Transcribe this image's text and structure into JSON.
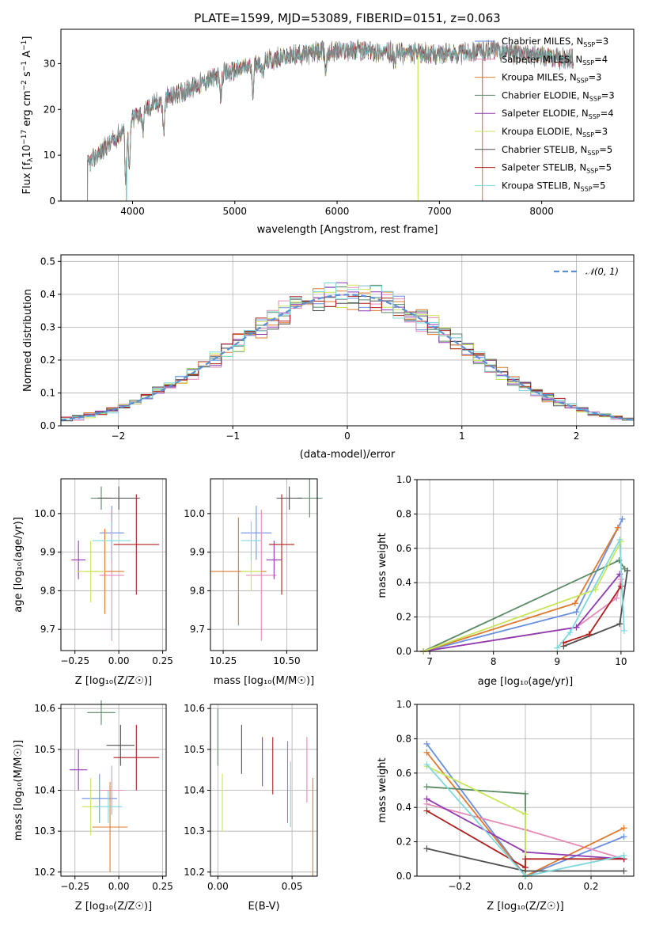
{
  "colors": {
    "Chabrier MILES": "#6a8fe0",
    "Salpeter MILES": "#e68ab7",
    "Kroupa MILES": "#e07a2e",
    "Chabrier ELODIE": "#5a8a64",
    "Salpeter ELODIE": "#8f3ab0",
    "Kroupa ELODIE": "#c8e65a",
    "Chabrier STELIB": "#505050",
    "Salpeter STELIB": "#b01e1e",
    "Kroupa STELIB": "#7fd8dc"
  },
  "chart_data": [
    {
      "id": "spectrum",
      "type": "line",
      "title": "PLATE=1599, MJD=53089, FIBERID=0151, z=0.063",
      "xlabel": "wavelength [Angstrom, rest frame]",
      "ylabel_parts": [
        "Flux [f",
        "λ",
        "10",
        "−17",
        " erg cm",
        "−2",
        " s",
        "−1",
        " A",
        "−1",
        "]"
      ],
      "xlim": [
        3300,
        8900
      ],
      "ylim": [
        0,
        37.5
      ],
      "xticks": [
        "4000",
        "5000",
        "6000",
        "7000",
        "8000"
      ],
      "yticks": [
        "0",
        "10",
        "20",
        "30"
      ],
      "legend_position": "right",
      "legend": [
        {
          "name": "Chabrier MILES",
          "nssp": "3"
        },
        {
          "name": "Salpeter MILES",
          "nssp": "4"
        },
        {
          "name": "Kroupa MILES",
          "nssp": "3"
        },
        {
          "name": "Chabrier ELODIE",
          "nssp": "3"
        },
        {
          "name": "Salpeter ELODIE",
          "nssp": "4"
        },
        {
          "name": "Kroupa ELODIE",
          "nssp": "3"
        },
        {
          "name": "Chabrier STELIB",
          "nssp": "5"
        },
        {
          "name": "Salpeter STELIB",
          "nssp": "5"
        },
        {
          "name": "Kroupa STELIB",
          "nssp": "5"
        }
      ],
      "legend_sub": "SSP",
      "continuum": [
        [
          3560,
          8
        ],
        [
          3700,
          11
        ],
        [
          3850,
          14
        ],
        [
          3950,
          17
        ],
        [
          4050,
          19
        ],
        [
          4200,
          21
        ],
        [
          4400,
          23
        ],
        [
          4600,
          25
        ],
        [
          4800,
          27
        ],
        [
          5000,
          28.5
        ],
        [
          5200,
          30
        ],
        [
          5500,
          31.5
        ],
        [
          5800,
          32.5
        ],
        [
          6100,
          33
        ],
        [
          6500,
          32.5
        ],
        [
          7000,
          32
        ],
        [
          7500,
          33
        ],
        [
          8000,
          31.5
        ],
        [
          8300,
          31
        ]
      ],
      "data_xrange": [
        3560,
        8310
      ],
      "dips": [
        [
          3934,
          12
        ],
        [
          3969,
          11
        ],
        [
          4102,
          4
        ],
        [
          4304,
          7
        ],
        [
          4861,
          5
        ],
        [
          5175,
          6
        ],
        [
          5270,
          3
        ],
        [
          5890,
          4
        ],
        [
          6563,
          3
        ]
      ],
      "dropouts": [
        [
          3935,
          "Kroupa MILES"
        ],
        [
          3945,
          "Kroupa STELIB"
        ],
        [
          6790,
          "Kroupa ELODIE"
        ],
        [
          7420,
          "Salpeter STELIB"
        ],
        [
          3560,
          "Chabrier STELIB"
        ]
      ]
    },
    {
      "id": "residuals",
      "type": "histogram",
      "xlabel": "(data-model)/error",
      "ylabel": "Normed distribution",
      "xlim": [
        -2.5,
        2.5
      ],
      "ylim": [
        0,
        0.52
      ],
      "xticks": [
        "−2",
        "−1",
        "0",
        "1",
        "2"
      ],
      "yticks": [
        "0.0",
        "0.1",
        "0.2",
        "0.3",
        "0.4",
        "0.5"
      ],
      "bin_width": 0.1,
      "legend_label": "𝒩(0, 1)",
      "legend_position": "top-right"
    },
    {
      "id": "age-vs-Z",
      "type": "errorbar",
      "xlabel": "Z [log₁₀(Z/Z☉)]",
      "ylabel": "age  [log₁₀(age/yr)]",
      "xlim": [
        -0.33,
        0.27
      ],
      "ylim": [
        9.645,
        10.09
      ],
      "xticks": [
        -0.25,
        0.0,
        0.25
      ],
      "xtick_labels": [
        "−0.25",
        "0.00",
        "0.25"
      ],
      "yticks": [
        9.7,
        9.8,
        9.9,
        10.0
      ],
      "ytick_labels": [
        "9.7",
        "9.8",
        "9.9",
        "10.0"
      ],
      "points": [
        {
          "series": "Chabrier MILES",
          "x": -0.04,
          "y": 9.95,
          "xerr": 0.07,
          "yerr": 0.07
        },
        {
          "series": "Salpeter MILES",
          "x": -0.04,
          "y": 9.84,
          "xerr": 0.07,
          "yerr": 0.17
        },
        {
          "series": "Kroupa MILES",
          "x": -0.08,
          "y": 9.85,
          "xerr": 0.11,
          "yerr": 0.11
        },
        {
          "series": "Chabrier ELODIE",
          "x": -0.1,
          "y": 10.04,
          "xerr": 0.06,
          "yerr": 0.03
        },
        {
          "series": "Salpeter ELODIE",
          "x": -0.23,
          "y": 9.88,
          "xerr": 0.04,
          "yerr": 0.05
        },
        {
          "series": "Kroupa ELODIE",
          "x": -0.16,
          "y": 9.85,
          "xerr": 0.08,
          "yerr": 0.08
        },
        {
          "series": "Chabrier STELIB",
          "x": 0.0,
          "y": 10.04,
          "xerr": 0.12,
          "yerr": 0.03
        },
        {
          "series": "Salpeter STELIB",
          "x": 0.1,
          "y": 9.92,
          "xerr": 0.13,
          "yerr": 0.13
        },
        {
          "series": "Kroupa STELIB",
          "x": -0.04,
          "y": 9.93,
          "xerr": 0.11,
          "yerr": 0.05
        }
      ]
    },
    {
      "id": "age-vs-mass",
      "type": "errorbar",
      "xlabel": "mass [log₁₀(M/M☉)]",
      "ylabel": "",
      "xlim": [
        10.2,
        10.62
      ],
      "ylim": [
        9.645,
        10.09
      ],
      "xticks": [
        10.25,
        10.5
      ],
      "xtick_labels": [
        "10.25",
        "10.50"
      ],
      "yticks": [
        9.7,
        9.8,
        9.9,
        10.0
      ],
      "ytick_labels": [
        "9.7",
        "9.8",
        "9.9",
        "10.0"
      ],
      "points": [
        {
          "series": "Chabrier MILES",
          "x": 10.38,
          "y": 9.95,
          "xerr": 0.06,
          "yerr": 0.07
        },
        {
          "series": "Salpeter MILES",
          "x": 10.4,
          "y": 9.84,
          "xerr": 0.06,
          "yerr": 0.17
        },
        {
          "series": "Kroupa MILES",
          "x": 10.31,
          "y": 9.85,
          "xerr": 0.11,
          "yerr": 0.14
        },
        {
          "series": "Chabrier ELODIE",
          "x": 10.59,
          "y": 10.04,
          "xerr": 0.05,
          "yerr": 0.05
        },
        {
          "series": "Salpeter ELODIE",
          "x": 10.45,
          "y": 9.88,
          "xerr": 0.03,
          "yerr": 0.05
        },
        {
          "series": "Kroupa ELODIE",
          "x": 10.36,
          "y": 9.85,
          "xerr": 0.04,
          "yerr": 0.05
        },
        {
          "series": "Chabrier STELIB",
          "x": 10.51,
          "y": 10.04,
          "xerr": 0.05,
          "yerr": 0.03
        },
        {
          "series": "Salpeter STELIB",
          "x": 10.48,
          "y": 9.92,
          "xerr": 0.05,
          "yerr": 0.13
        },
        {
          "series": "Kroupa STELIB",
          "x": 10.36,
          "y": 9.93,
          "xerr": 0.04,
          "yerr": 0.05
        }
      ]
    },
    {
      "id": "weight-vs-age",
      "type": "line",
      "xlabel": "age  [log₁₀(age/yr)]",
      "ylabel": "mass weight",
      "xlim": [
        6.8,
        10.2
      ],
      "ylim": [
        0,
        1.0
      ],
      "xticks": [
        7,
        8,
        9,
        10
      ],
      "xtick_labels": [
        "7",
        "8",
        "9",
        "10"
      ],
      "yticks": [
        0,
        0.2,
        0.4,
        0.6,
        0.8,
        1.0
      ],
      "ytick_labels": [
        "0.0",
        "0.2",
        "0.4",
        "0.6",
        "0.8",
        "1.0"
      ],
      "series": [
        {
          "name": "Chabrier MILES",
          "x": [
            6.9,
            9.3,
            10.02
          ],
          "y": [
            0.0,
            0.23,
            0.77
          ]
        },
        {
          "name": "Salpeter MILES",
          "x": [
            6.9,
            9.3,
            9.93,
            10.0
          ],
          "y": [
            0.0,
            0.14,
            0.31,
            0.42
          ]
        },
        {
          "name": "Kroupa MILES",
          "x": [
            6.9,
            9.28,
            9.95
          ],
          "y": [
            0.0,
            0.28,
            0.72
          ]
        },
        {
          "name": "Chabrier ELODIE",
          "x": [
            6.9,
            9.97,
            10.06
          ],
          "y": [
            0.0,
            0.53,
            0.48
          ]
        },
        {
          "name": "Salpeter ELODIE",
          "x": [
            6.9,
            9.3,
            9.98
          ],
          "y": [
            0.0,
            0.14,
            0.45
          ]
        },
        {
          "name": "Kroupa ELODIE",
          "x": [
            6.9,
            9.6,
            10.0
          ],
          "y": [
            0.0,
            0.36,
            0.64
          ]
        },
        {
          "name": "Chabrier STELIB",
          "x": [
            9.1,
            9.98,
            10.1
          ],
          "y": [
            0.03,
            0.16,
            0.47
          ]
        },
        {
          "name": "Salpeter STELIB",
          "x": [
            9.1,
            9.5,
            10.0
          ],
          "y": [
            0.05,
            0.1,
            0.38
          ]
        },
        {
          "name": "Kroupa STELIB",
          "x": [
            9.0,
            9.2,
            9.98,
            10.05
          ],
          "y": [
            0.02,
            0.11,
            0.65,
            0.12
          ]
        }
      ]
    },
    {
      "id": "mass-vs-Z",
      "type": "errorbar",
      "xlabel": "Z [log₁₀(Z/Z☉)]",
      "ylabel": "mass [log₁₀(M/M☉)]",
      "xlim": [
        -0.33,
        0.27
      ],
      "ylim": [
        10.19,
        10.61
      ],
      "xticks": [
        -0.25,
        0.0,
        0.25
      ],
      "xtick_labels": [
        "−0.25",
        "0.00",
        "0.25"
      ],
      "yticks": [
        10.2,
        10.3,
        10.4,
        10.5,
        10.6
      ],
      "ytick_labels": [
        "10.2",
        "10.3",
        "10.4",
        "10.5",
        "10.6"
      ],
      "points": [
        {
          "series": "Chabrier MILES",
          "x": -0.11,
          "y": 10.38,
          "xerr": 0.1,
          "yerr": 0.06
        },
        {
          "series": "Salpeter MILES",
          "x": -0.04,
          "y": 10.4,
          "xerr": 0.07,
          "yerr": 0.06
        },
        {
          "series": "Kroupa MILES",
          "x": -0.05,
          "y": 10.31,
          "xerr": 0.1,
          "yerr": 0.11
        },
        {
          "series": "Chabrier ELODIE",
          "x": -0.1,
          "y": 10.59,
          "xerr": 0.08,
          "yerr": 0.03
        },
        {
          "series": "Salpeter ELODIE",
          "x": -0.23,
          "y": 10.45,
          "xerr": 0.05,
          "yerr": 0.05
        },
        {
          "series": "Kroupa ELODIE",
          "x": -0.16,
          "y": 10.36,
          "xerr": 0.05,
          "yerr": 0.07
        },
        {
          "series": "Chabrier STELIB",
          "x": 0.01,
          "y": 10.51,
          "xerr": 0.08,
          "yerr": 0.05
        },
        {
          "series": "Salpeter STELIB",
          "x": 0.1,
          "y": 10.48,
          "xerr": 0.13,
          "yerr": 0.08
        },
        {
          "series": "Kroupa STELIB",
          "x": -0.06,
          "y": 10.36,
          "xerr": 0.08,
          "yerr": 0.04
        }
      ]
    },
    {
      "id": "mass-vs-EBV",
      "type": "errorbar",
      "xlabel": "E(B-V)",
      "ylabel": "",
      "xlim": [
        -0.005,
        0.067
      ],
      "ylim": [
        10.19,
        10.61
      ],
      "xticks": [
        0.0,
        0.05
      ],
      "xtick_labels": [
        "0.00",
        "0.05"
      ],
      "yticks": [
        10.2,
        10.3,
        10.4,
        10.5,
        10.6
      ],
      "ytick_labels": [
        "10.2",
        "10.3",
        "10.4",
        "10.5",
        "10.6"
      ],
      "points": [
        {
          "series": "Chabrier MILES",
          "x": 0.047,
          "y": 10.42,
          "xerr": 0,
          "yerr": 0.1
        },
        {
          "series": "Salpeter MILES",
          "x": 0.06,
          "y": 10.45,
          "xerr": 0,
          "yerr": 0.08
        },
        {
          "series": "Kroupa MILES",
          "x": 0.064,
          "y": 10.31,
          "xerr": 0,
          "yerr": 0.12
        },
        {
          "series": "Chabrier ELODIE",
          "x": 0.0,
          "y": 10.53,
          "xerr": 0,
          "yerr": 0.07
        },
        {
          "series": "Salpeter ELODIE",
          "x": 0.03,
          "y": 10.47,
          "xerr": 0,
          "yerr": 0.06
        },
        {
          "series": "Kroupa ELODIE",
          "x": 0.003,
          "y": 10.37,
          "xerr": 0,
          "yerr": 0.07
        },
        {
          "series": "Chabrier STELIB",
          "x": 0.016,
          "y": 10.5,
          "xerr": 0,
          "yerr": 0.06
        },
        {
          "series": "Salpeter STELIB",
          "x": 0.037,
          "y": 10.46,
          "xerr": 0,
          "yerr": 0.07
        },
        {
          "series": "Kroupa STELIB",
          "x": 0.049,
          "y": 10.39,
          "xerr": 0,
          "yerr": 0.08
        }
      ]
    },
    {
      "id": "weight-vs-Z",
      "type": "line",
      "xlabel": "Z [log₁₀(Z/Z☉)]",
      "ylabel": "mass weight",
      "xlim": [
        -0.33,
        0.33
      ],
      "ylim": [
        0,
        1.0
      ],
      "xticks": [
        -0.2,
        0.0,
        0.2
      ],
      "xtick_labels": [
        "−0.2",
        "0.0",
        "0.2"
      ],
      "yticks": [
        0,
        0.2,
        0.4,
        0.6,
        0.8,
        1.0
      ],
      "ytick_labels": [
        "0.0",
        "0.2",
        "0.4",
        "0.6",
        "0.8",
        "1.0"
      ],
      "series": [
        {
          "name": "Chabrier MILES",
          "x": [
            -0.3,
            0.0,
            0.3
          ],
          "y": [
            0.77,
            0.0,
            0.23
          ]
        },
        {
          "name": "Salpeter MILES",
          "x": [
            -0.3,
            0.0,
            0.3
          ],
          "y": [
            0.42,
            0.27,
            0.1
          ]
        },
        {
          "name": "Kroupa MILES",
          "x": [
            -0.3,
            0.0,
            0.3
          ],
          "y": [
            0.72,
            0.0,
            0.28
          ]
        },
        {
          "name": "Chabrier ELODIE",
          "x": [
            -0.3,
            0.0,
            0.0
          ],
          "y": [
            0.52,
            0.48,
            0.0
          ]
        },
        {
          "name": "Salpeter ELODIE",
          "x": [
            -0.3,
            0.0,
            0.3
          ],
          "y": [
            0.45,
            0.14,
            0.1
          ]
        },
        {
          "name": "Kroupa ELODIE",
          "x": [
            -0.3,
            0.0,
            0.0
          ],
          "y": [
            0.64,
            0.36,
            0.0
          ]
        },
        {
          "name": "Chabrier STELIB",
          "x": [
            -0.3,
            0.0,
            0.3
          ],
          "y": [
            0.16,
            0.03,
            0.03
          ]
        },
        {
          "name": "Salpeter STELIB",
          "x": [
            -0.3,
            0.0,
            0.0,
            0.3
          ],
          "y": [
            0.38,
            0.05,
            0.1,
            0.1
          ]
        },
        {
          "name": "Kroupa STELIB",
          "x": [
            -0.3,
            0.0,
            0.3
          ],
          "y": [
            0.65,
            0.0,
            0.12
          ]
        }
      ]
    }
  ]
}
